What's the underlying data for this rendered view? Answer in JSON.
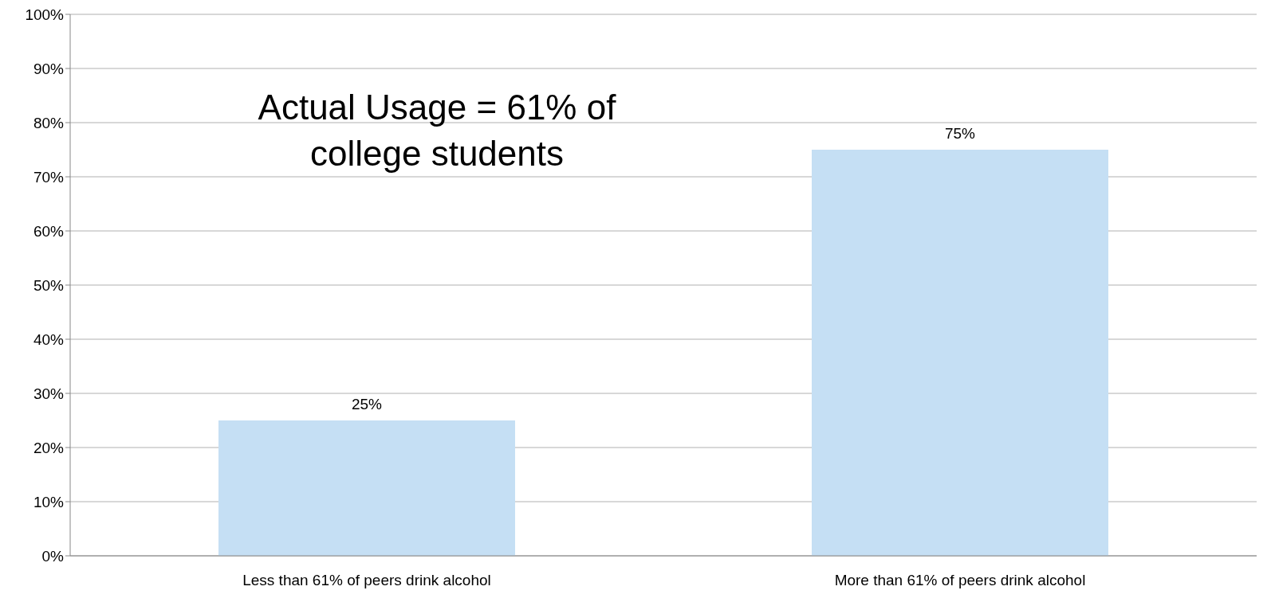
{
  "chart_data": {
    "type": "bar",
    "categories": [
      "Less than 61% of peers drink alcohol",
      "More than 61% of peers drink alcohol"
    ],
    "values": [
      25,
      75
    ],
    "value_labels": [
      "25%",
      "75%"
    ],
    "color": "#c5dff4",
    "ylim": [
      0,
      100
    ],
    "yticks": [
      {
        "value": 0,
        "label": "0%"
      },
      {
        "value": 10,
        "label": "10%"
      },
      {
        "value": 20,
        "label": "20%"
      },
      {
        "value": 30,
        "label": "30%"
      },
      {
        "value": 40,
        "label": "40%"
      },
      {
        "value": 50,
        "label": "50%"
      },
      {
        "value": 60,
        "label": "60%"
      },
      {
        "value": 70,
        "label": "70%"
      },
      {
        "value": 80,
        "label": "80%"
      },
      {
        "value": 90,
        "label": "90%"
      },
      {
        "value": 100,
        "label": "100%"
      }
    ],
    "grid": "y",
    "legend": false,
    "annotations": [
      "Actual Usage = 61% of college students"
    ]
  }
}
